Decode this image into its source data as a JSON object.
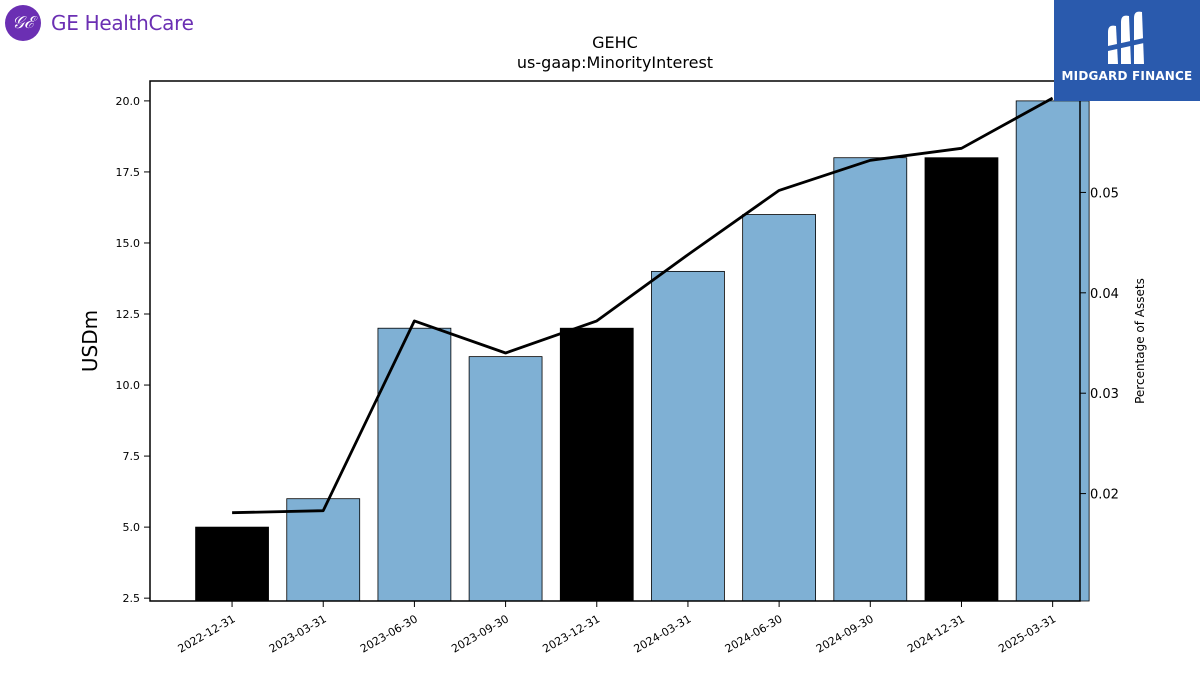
{
  "company": {
    "name": "GE HealthCare",
    "logo_icon": "ge-monogram-icon",
    "brand_color": "#6b2fb3"
  },
  "badge": {
    "text": "MIDGARD FINANCE",
    "icon": "midgard-mark-icon",
    "color": "#2a5aad"
  },
  "chart_data": {
    "type": "bar",
    "title": "GEHC",
    "subtitle": "us-gaap:MinorityInterest",
    "ylabel": "USDm",
    "y2label": "Percentage of Assets",
    "categories": [
      "2022-12-31",
      "2023-03-31",
      "2023-06-30",
      "2023-09-30",
      "2023-12-31",
      "2024-03-31",
      "2024-06-30",
      "2024-09-30",
      "2024-12-31",
      "2025-03-31"
    ],
    "series": [
      {
        "values": [
          5,
          6,
          12,
          11,
          12,
          14,
          16,
          18,
          18,
          20
        ],
        "colors": [
          "#000000",
          "#7fb0d4",
          "#7fb0d4",
          "#7fb0d4",
          "#000000",
          "#7fb0d4",
          "#7fb0d4",
          "#7fb0d4",
          "#000000",
          "#7fb0d4"
        ],
        "axis": "left"
      },
      {
        "type": "line",
        "values": [
          0.0181,
          0.0183,
          0.0372,
          0.034,
          0.0372,
          0.0438,
          0.0502,
          0.0532,
          0.0544,
          0.0594
        ],
        "color": "#000000",
        "axis": "right"
      }
    ],
    "ylim": [
      2.4,
      20.7
    ],
    "yticks": [
      "2.5",
      "5.0",
      "7.5",
      "10.0",
      "12.5",
      "15.0",
      "17.5",
      "20.0"
    ],
    "y2lim": [
      0.0093,
      0.0611
    ],
    "y2ticks": [
      "0.02",
      "0.03",
      "0.04",
      "0.05",
      "0.06"
    ],
    "grid": false,
    "legend": "none"
  }
}
